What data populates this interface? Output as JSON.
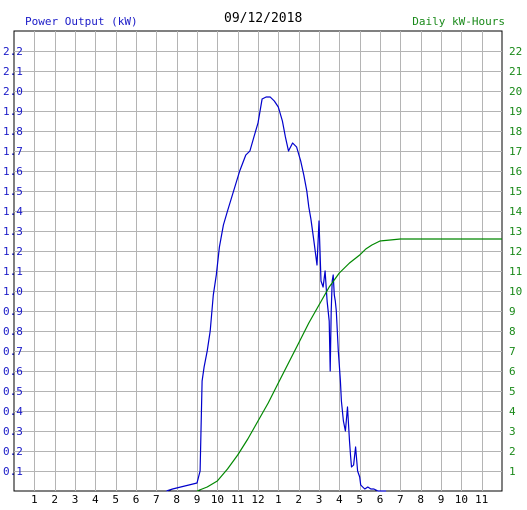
{
  "header": {
    "left_title": "Power Output (kW)",
    "date": "09/12/2018",
    "right_title": "Daily kW-Hours"
  },
  "colors": {
    "power": "#0000cc",
    "energy": "#008800",
    "grid": "#b4b4b4",
    "left_axis_text": "#1c1cc8",
    "right_axis_text": "#1a8a1a"
  },
  "chart_data": {
    "type": "line",
    "title": "09/12/2018",
    "xlabel": "",
    "ylabel": "Power Output (kW)",
    "y2label": "Daily kW-Hours",
    "x_ticks": [
      "1",
      "2",
      "3",
      "4",
      "5",
      "6",
      "7",
      "8",
      "9",
      "10",
      "11",
      "12",
      "1",
      "2",
      "3",
      "4",
      "5",
      "6",
      "7",
      "8",
      "9",
      "10",
      "11"
    ],
    "x_range": [
      0,
      24
    ],
    "ylim": [
      0,
      2.3
    ],
    "y2lim": [
      0,
      23
    ],
    "y_ticks": [
      0.1,
      0.2,
      0.3,
      0.4,
      0.5,
      0.6,
      0.7,
      0.8,
      0.9,
      1.0,
      1.1,
      1.2,
      1.3,
      1.4,
      1.5,
      1.6,
      1.7,
      1.8,
      1.9,
      2.0,
      2.1,
      2.2
    ],
    "y_tick_labels": [
      "0.1",
      "0.2",
      "0.3",
      "0.4",
      "0.5",
      "0.6",
      "0.7",
      "0.8",
      "0.9",
      "1.0",
      "1.1",
      "1.2",
      "1.3",
      "1.4",
      "1.5",
      "1.6",
      "1.7",
      "1.8",
      "1.9",
      "2.0",
      "2.1",
      "2.2"
    ],
    "y2_ticks": [
      1,
      2,
      3,
      4,
      5,
      6,
      7,
      8,
      9,
      10,
      11,
      12,
      13,
      14,
      15,
      16,
      17,
      18,
      19,
      20,
      21,
      22
    ],
    "y2_tick_labels": [
      "1",
      "2",
      "3",
      "4",
      "5",
      "6",
      "7",
      "8",
      "9",
      "10",
      "11",
      "12",
      "13",
      "14",
      "15",
      "16",
      "17",
      "18",
      "19",
      "20",
      "21",
      "22"
    ],
    "grid": true,
    "series": [
      {
        "name": "Power Output (kW)",
        "axis": "left",
        "x": [
          7.5,
          7.8,
          8.2,
          8.6,
          9.0,
          9.15,
          9.25,
          9.35,
          9.5,
          9.65,
          9.8,
          9.95,
          10.1,
          10.3,
          10.5,
          10.8,
          11.1,
          11.4,
          11.6,
          11.8,
          12.0,
          12.2,
          12.4,
          12.6,
          12.8,
          13.0,
          13.2,
          13.35,
          13.5,
          13.7,
          13.9,
          14.1,
          14.25,
          14.4,
          14.5,
          14.6,
          14.75,
          14.9,
          15.0,
          15.1,
          15.2,
          15.3,
          15.4,
          15.5,
          15.55,
          15.6,
          15.65,
          15.7,
          15.75,
          15.8,
          15.85,
          15.9,
          15.95,
          16.0,
          16.05,
          16.1,
          16.2,
          16.3,
          16.4,
          16.5,
          16.55,
          16.6,
          16.7,
          16.8,
          16.9,
          17.0,
          17.05,
          17.15,
          17.25,
          17.4,
          17.55,
          17.7,
          17.9,
          18.1,
          18.3
        ],
        "y": [
          0.0,
          0.01,
          0.02,
          0.03,
          0.04,
          0.1,
          0.55,
          0.62,
          0.7,
          0.8,
          0.98,
          1.08,
          1.22,
          1.33,
          1.4,
          1.5,
          1.6,
          1.68,
          1.7,
          1.77,
          1.84,
          1.96,
          1.97,
          1.97,
          1.95,
          1.92,
          1.85,
          1.77,
          1.7,
          1.74,
          1.72,
          1.65,
          1.58,
          1.5,
          1.42,
          1.36,
          1.25,
          1.13,
          1.35,
          1.05,
          1.02,
          1.1,
          0.95,
          0.85,
          0.6,
          0.9,
          1.05,
          1.08,
          0.98,
          0.95,
          0.9,
          0.8,
          0.7,
          0.63,
          0.55,
          0.45,
          0.35,
          0.3,
          0.42,
          0.25,
          0.18,
          0.12,
          0.13,
          0.22,
          0.1,
          0.07,
          0.03,
          0.02,
          0.01,
          0.02,
          0.01,
          0.01,
          0.0,
          0.0,
          0.0
        ]
      },
      {
        "name": "Daily kW-Hours",
        "axis": "right",
        "x": [
          9.0,
          9.5,
          10.0,
          10.5,
          11.0,
          11.5,
          12.0,
          12.5,
          13.0,
          13.5,
          14.0,
          14.5,
          15.0,
          15.5,
          16.0,
          16.5,
          17.0,
          17.3,
          17.6,
          18.0,
          18.5,
          19.0,
          20.0,
          24.0
        ],
        "y": [
          0.0,
          0.2,
          0.5,
          1.1,
          1.8,
          2.6,
          3.5,
          4.4,
          5.4,
          6.4,
          7.4,
          8.4,
          9.3,
          10.2,
          10.9,
          11.4,
          11.8,
          12.1,
          12.3,
          12.5,
          12.55,
          12.6,
          12.6,
          12.6
        ]
      }
    ]
  }
}
